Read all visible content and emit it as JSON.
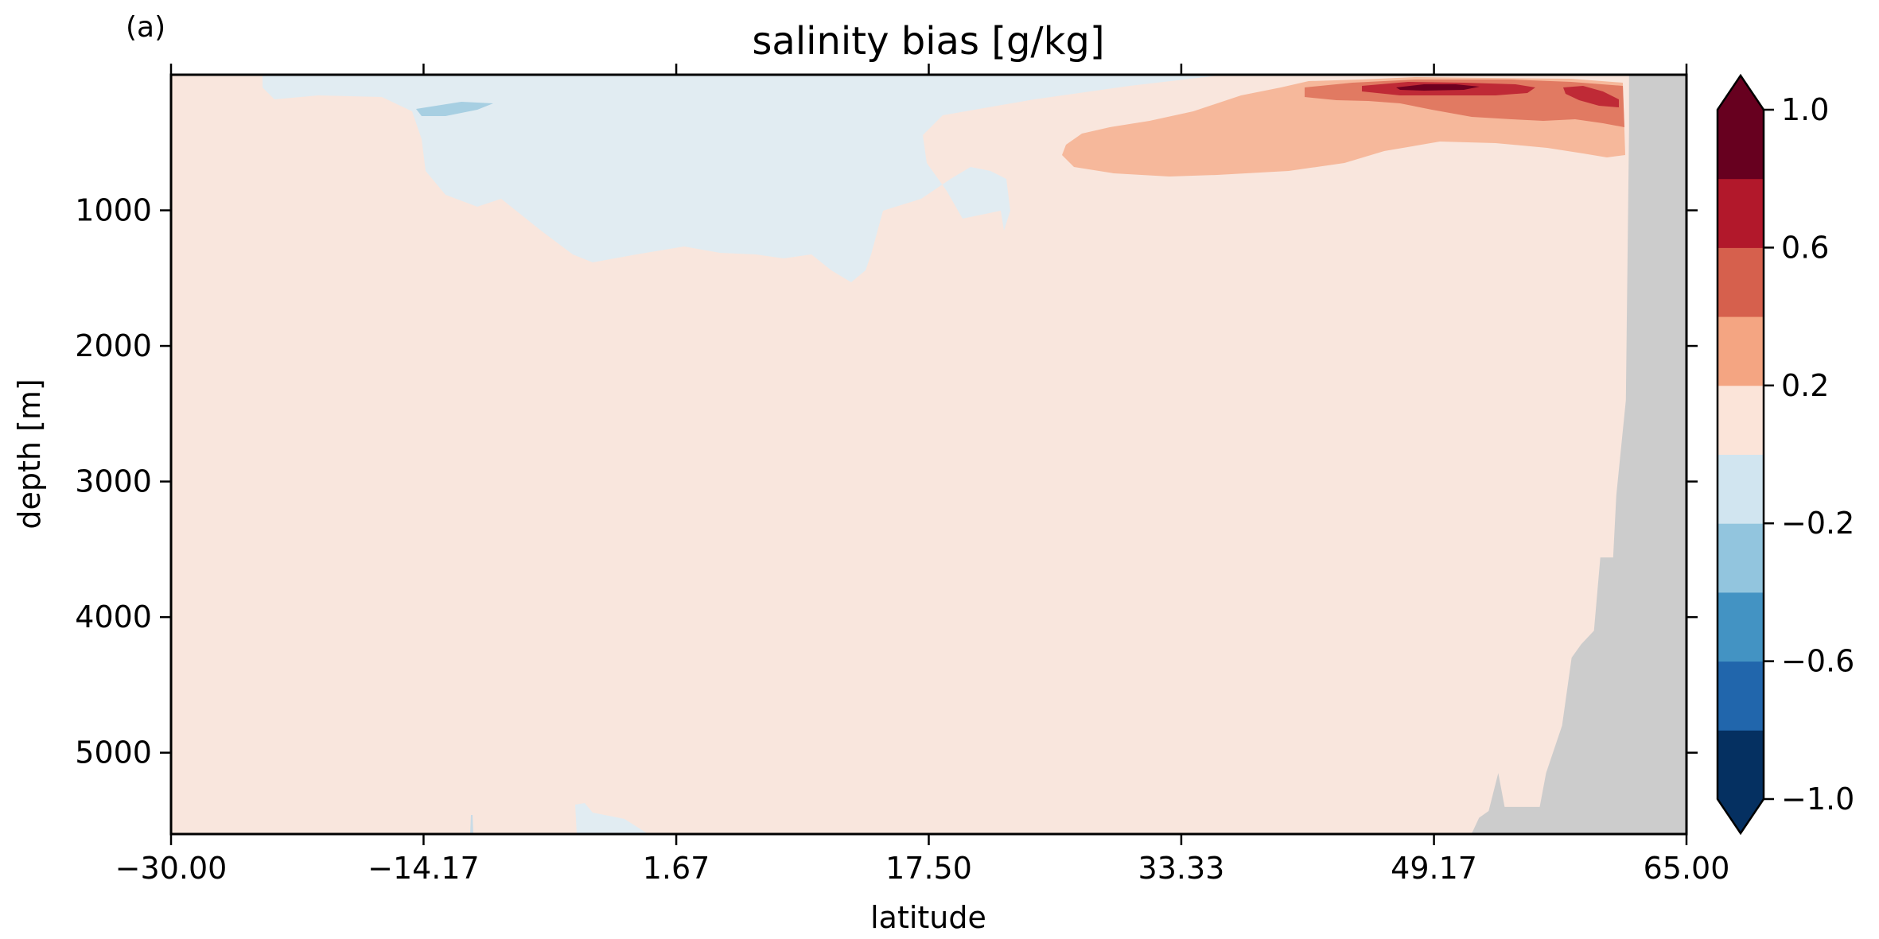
{
  "chart_data": {
    "type": "heatmap",
    "panel_label": "(a)",
    "title": "salinity bias [g/kg]",
    "xlabel": "latitude",
    "ylabel": "depth [m]",
    "xlim": [
      -30,
      65
    ],
    "ylim": [
      5600,
      0
    ],
    "y_inverted": true,
    "xticks": [
      -30,
      -14.17,
      1.67,
      17.5,
      33.33,
      49.17,
      65
    ],
    "xtick_labels": [
      "−30.00",
      "−14.17",
      "1.67",
      "17.50",
      "33.33",
      "49.17",
      "65.00"
    ],
    "yticks": [
      1000,
      2000,
      3000,
      4000,
      5000
    ],
    "ytick_labels": [
      "1000",
      "2000",
      "3000",
      "4000",
      "5000"
    ],
    "colorbar": {
      "levels": [
        -1.0,
        -0.8,
        -0.6,
        -0.4,
        -0.2,
        0.0,
        0.2,
        0.4,
        0.6,
        0.8,
        1.0
      ],
      "tick_values": [
        -1.0,
        -0.6,
        -0.2,
        0.2,
        0.6,
        1.0
      ],
      "tick_labels": [
        "−1.0",
        "−0.6",
        "−0.2",
        "0.2",
        "0.6",
        "1.0"
      ],
      "colors": [
        "#053061",
        "#2166ac",
        "#4393c3",
        "#92c5de",
        "#d1e5f0",
        "#fbe4d9",
        "#f4a582",
        "#d6604d",
        "#b2182b",
        "#67001f"
      ],
      "extend": "both",
      "over_color": "#67001f",
      "under_color": "#053061"
    },
    "background_level_color": "#f9e6dd",
    "land_mask_color": "#cccccc",
    "features": [
      {
        "name": "negative-bias-upper-region",
        "range": [
          -0.2,
          0.0
        ],
        "color": "#e1ecf2",
        "lat_extent": [
          -23,
          21
        ],
        "depth_extent": [
          0,
          1580
        ]
      },
      {
        "name": "small-negative-lens",
        "range": [
          -0.4,
          -0.2
        ],
        "color": "#a7cfe2",
        "lat_extent": [
          -14,
          -8
        ],
        "depth_extent": [
          180,
          320
        ]
      },
      {
        "name": "positive-bias-surface-tongue",
        "range": [
          0.2,
          0.4
        ],
        "color": "#f6b89b",
        "lat_extent": [
          26,
          64
        ],
        "depth_extent": [
          60,
          780
        ]
      },
      {
        "name": "strong-positive-core",
        "range": [
          0.4,
          0.6
        ],
        "color": "#e17a62",
        "lat_extent": [
          44,
          64
        ],
        "depth_extent": [
          50,
          330
        ]
      },
      {
        "name": "very-strong-positive-core",
        "range": [
          0.6,
          0.8
        ],
        "color": "#bf2a36",
        "lat_extent": [
          46,
          63
        ],
        "depth_extent": [
          70,
          230
        ]
      },
      {
        "name": "maximum-positive-core",
        "range": [
          0.8,
          1.0
        ],
        "color": "#6e0020",
        "lat_extent": [
          48.5,
          52
        ],
        "depth_extent": [
          90,
          140
        ]
      }
    ],
    "land_boundary": [
      [
        65,
        5600
      ],
      [
        65,
        0
      ],
      [
        61.4,
        0
      ],
      [
        61.4,
        400
      ],
      [
        61.2,
        2400
      ],
      [
        60.6,
        3100
      ],
      [
        60.4,
        3560
      ],
      [
        59.6,
        3560
      ],
      [
        59.2,
        4100
      ],
      [
        58.4,
        4200
      ],
      [
        57.8,
        4300
      ],
      [
        57.2,
        4800
      ],
      [
        56.2,
        5150
      ],
      [
        55.8,
        5400
      ],
      [
        53.6,
        5400
      ],
      [
        53.2,
        5150
      ],
      [
        52.6,
        5430
      ],
      [
        52,
        5480
      ],
      [
        51.6,
        5580
      ],
      [
        51.5,
        5600
      ]
    ]
  }
}
